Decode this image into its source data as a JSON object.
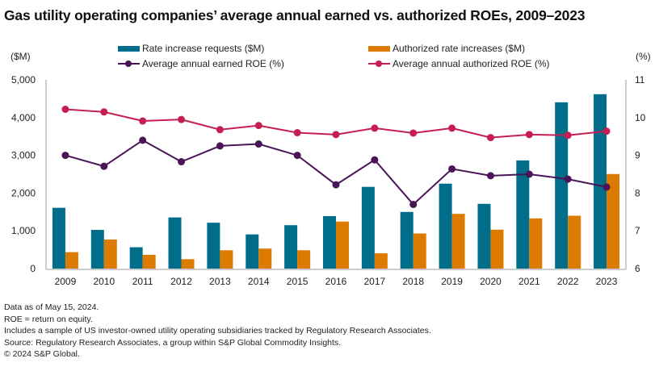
{
  "colors": {
    "rate_requests": "#006E8A",
    "authorized_increases": "#DD7A00",
    "earned_roe": "#4A1457",
    "authorized_roe": "#C41F50",
    "axis": "#cccccc"
  },
  "chart_data": {
    "type": "bar+line",
    "title": "Gas utility operating companies’ average annual earned vs. authorized ROEs, 2009–2023",
    "left_axis_label": "($M)",
    "right_axis_label": "(%)",
    "left_ylim": [
      0,
      5000
    ],
    "right_ylim": [
      6,
      11
    ],
    "left_ticks": [
      "0",
      "1,000",
      "2,000",
      "3,000",
      "4,000",
      "5,000"
    ],
    "left_tick_values": [
      0,
      1000,
      2000,
      3000,
      4000,
      5000
    ],
    "right_ticks": [
      "6",
      "7",
      "8",
      "9",
      "10",
      "11"
    ],
    "right_tick_values": [
      6,
      7,
      8,
      9,
      10,
      11
    ],
    "grid": false,
    "legend_position": "top",
    "categories": [
      "2009",
      "2010",
      "2011",
      "2012",
      "2013",
      "2014",
      "2015",
      "2016",
      "2017",
      "2018",
      "2019",
      "2020",
      "2021",
      "2022",
      "2023"
    ],
    "series": [
      {
        "name": "Rate increase requests ($M)",
        "kind": "bar",
        "axis": "left",
        "color_key": "rate_requests",
        "values": [
          1610,
          1025,
          565,
          1355,
          1215,
          905,
          1150,
          1390,
          2165,
          1500,
          2250,
          1715,
          2865,
          4405,
          4620
        ]
      },
      {
        "name": "Authorized rate increases ($M)",
        "kind": "bar",
        "axis": "left",
        "color_key": "authorized_increases",
        "values": [
          435,
          770,
          365,
          250,
          485,
          530,
          485,
          1245,
          405,
          930,
          1450,
          1030,
          1330,
          1400,
          2505
        ]
      },
      {
        "name": "Average annual earned ROE (%)",
        "kind": "line",
        "axis": "right",
        "color_key": "earned_roe",
        "values": [
          9.0,
          8.71,
          9.4,
          8.83,
          9.25,
          9.3,
          9.0,
          8.22,
          8.88,
          7.7,
          8.64,
          8.46,
          8.5,
          8.37,
          8.16
        ]
      },
      {
        "name": "Average annual authorized ROE (%)",
        "kind": "line",
        "axis": "right",
        "color_key": "authorized_roe",
        "values": [
          10.22,
          10.15,
          9.91,
          9.95,
          9.68,
          9.79,
          9.6,
          9.55,
          9.72,
          9.59,
          9.72,
          9.47,
          9.55,
          9.53,
          9.64
        ]
      }
    ]
  },
  "legend": [
    {
      "label": "Rate increase requests ($M)",
      "type": "bar",
      "color_key": "rate_requests"
    },
    {
      "label": "Authorized rate increases ($M)",
      "type": "bar",
      "color_key": "authorized_increases"
    },
    {
      "label": "Average annual earned ROE (%)",
      "type": "line",
      "color_key": "earned_roe"
    },
    {
      "label": "Average annual authorized ROE (%)",
      "type": "line",
      "color_key": "authorized_roe"
    }
  ],
  "notes": [
    "Data as of May 15, 2024.",
    "ROE = return on equity.",
    "Includes a sample of US investor-owned utility operating subsidiaries tracked by Regulatory Research Associates.",
    "Source: Regulatory Research Associates, a group within S&P Global Commodity Insights.",
    "© 2024 S&P Global."
  ]
}
